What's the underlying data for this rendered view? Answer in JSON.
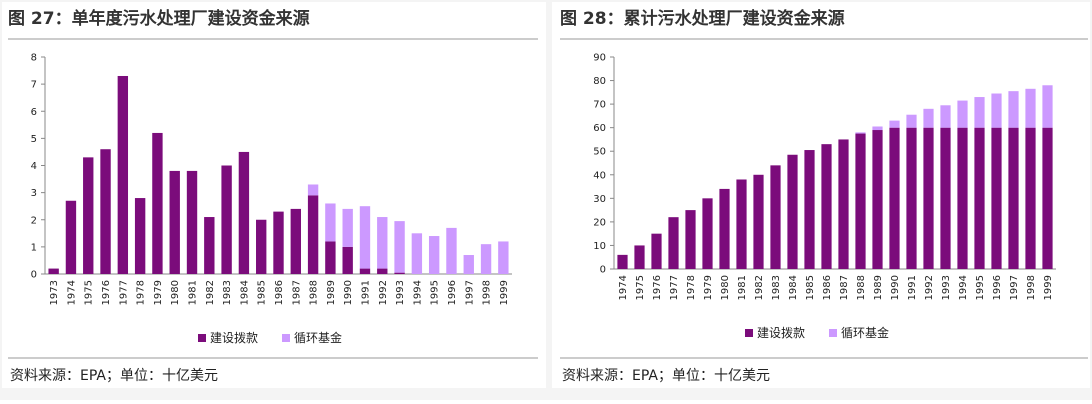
{
  "chart_data": [
    {
      "type": "bar",
      "stacked": true,
      "title": "图 27：单年度污水处理厂建设资金来源",
      "source": "资料来源：EPA；单位：十亿美元",
      "categories": [
        "1973",
        "1974",
        "1975",
        "1976",
        "1977",
        "1978",
        "1979",
        "1980",
        "1981",
        "1982",
        "1983",
        "1984",
        "1985",
        "1986",
        "1987",
        "1988",
        "1989",
        "1990",
        "1991",
        "1992",
        "1993",
        "1994",
        "1995",
        "1996",
        "1997",
        "1998",
        "1999"
      ],
      "series": [
        {
          "name": "建设拨款",
          "color": "#7b0c7b",
          "values": [
            0.2,
            2.7,
            4.3,
            4.6,
            7.3,
            2.8,
            5.2,
            3.8,
            3.8,
            2.1,
            4.0,
            4.5,
            2.0,
            2.3,
            2.4,
            2.9,
            1.2,
            1.0,
            0.2,
            0.2,
            0.05,
            0,
            0,
            0,
            0,
            0,
            0
          ]
        },
        {
          "name": "循环基金",
          "color": "#cc99ff",
          "values": [
            0,
            0,
            0,
            0,
            0,
            0,
            0,
            0,
            0,
            0,
            0,
            0,
            0,
            0,
            0,
            0.4,
            1.4,
            1.4,
            2.3,
            1.9,
            1.9,
            1.5,
            1.4,
            1.7,
            0.7,
            1.1,
            1.2
          ]
        }
      ],
      "ylim": [
        0,
        8
      ],
      "yticks": [
        0,
        1,
        2,
        3,
        4,
        5,
        6,
        7,
        8
      ]
    },
    {
      "type": "bar",
      "stacked": true,
      "title": "图 28：累计污水处理厂建设资金来源",
      "source": "资料来源：EPA；单位：十亿美元",
      "categories": [
        "1974",
        "1975",
        "1976",
        "1977",
        "1978",
        "1979",
        "1980",
        "1981",
        "1982",
        "1983",
        "1984",
        "1985",
        "1986",
        "1987",
        "1988",
        "1989",
        "1990",
        "1991",
        "1992",
        "1993",
        "1994",
        "1995",
        "1996",
        "1997",
        "1998",
        "1999"
      ],
      "series": [
        {
          "name": "建设拨款",
          "color": "#7b0c7b",
          "values": [
            6,
            10,
            15,
            22,
            25,
            30,
            34,
            38,
            40,
            44,
            48.5,
            50.5,
            53,
            55,
            57.5,
            59,
            60,
            60,
            60,
            60,
            60,
            60,
            60,
            60,
            60,
            60
          ]
        },
        {
          "name": "循环基金",
          "color": "#cc99ff",
          "values": [
            0,
            0,
            0,
            0,
            0,
            0,
            0,
            0,
            0,
            0,
            0,
            0,
            0,
            0,
            0.5,
            1.5,
            3,
            5.5,
            8,
            9.5,
            11.5,
            13,
            14.5,
            15.5,
            16.5,
            18
          ]
        }
      ],
      "ylim": [
        0,
        90
      ],
      "yticks": [
        0,
        10,
        20,
        30,
        40,
        50,
        60,
        70,
        80,
        90
      ]
    }
  ]
}
